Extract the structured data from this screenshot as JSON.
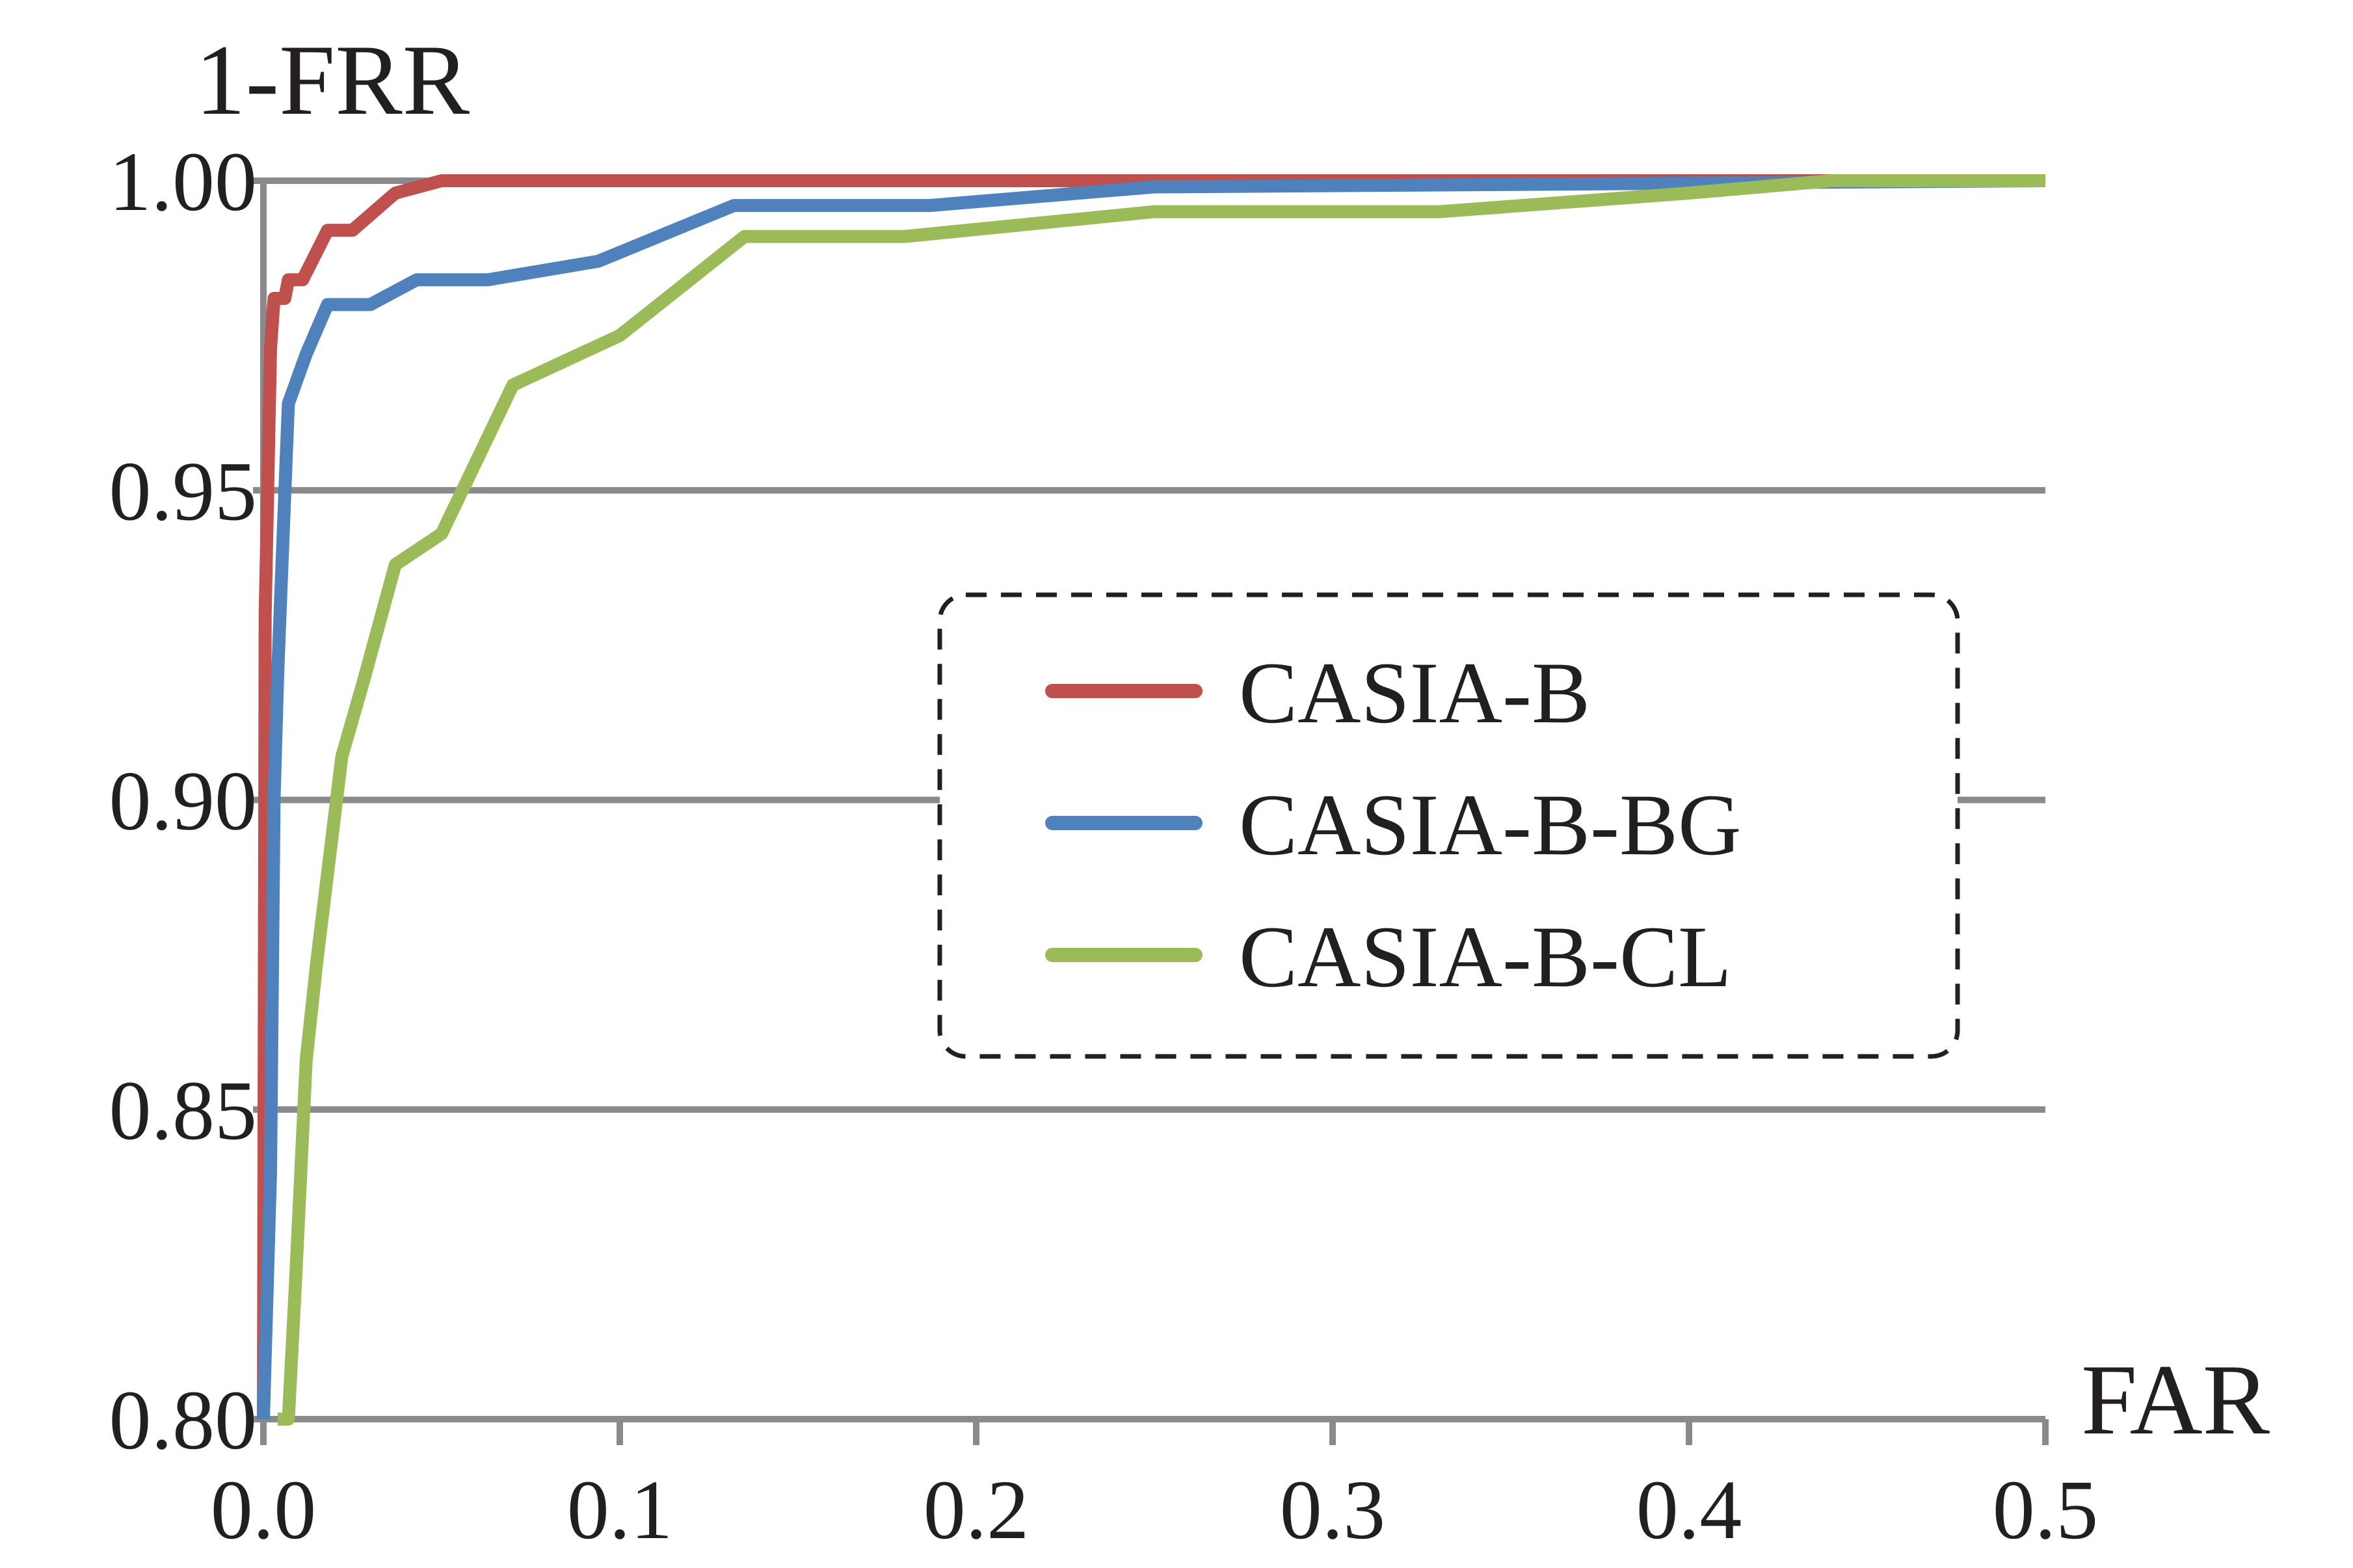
{
  "chart_data": {
    "type": "line",
    "title": "",
    "xlabel": "FAR",
    "ylabel": "1-FRR",
    "xlim": [
      0,
      0.5
    ],
    "ylim": [
      0.8,
      1.0
    ],
    "xticks": [
      0.0,
      0.1,
      0.2,
      0.3,
      0.4,
      0.5
    ],
    "xtick_labels": [
      "0.0",
      "0.1",
      "0.2",
      "0.3",
      "0.4",
      "0.5"
    ],
    "yticks": [
      0.8,
      0.85,
      0.9,
      0.95,
      1.0
    ],
    "ytick_labels": [
      "0.80",
      "0.85",
      "0.90",
      "0.95",
      "1.00"
    ],
    "grid": "horizontal",
    "legend": "center-right",
    "legend_border": "dashed",
    "series": [
      {
        "name": "CASIA-B",
        "color": "#c0504d",
        "points": [
          [
            0.0,
            0.8
          ],
          [
            0.0005,
            0.93
          ],
          [
            0.002,
            0.973
          ],
          [
            0.003,
            0.981
          ],
          [
            0.006,
            0.981
          ],
          [
            0.007,
            0.984
          ],
          [
            0.011,
            0.984
          ],
          [
            0.018,
            0.992
          ],
          [
            0.025,
            0.992
          ],
          [
            0.037,
            0.998
          ],
          [
            0.05,
            1.0
          ],
          [
            0.5,
            1.0
          ]
        ]
      },
      {
        "name": "CASIA-B-BG",
        "color": "#4f81bd",
        "points": [
          [
            0.0,
            0.8
          ],
          [
            0.002,
            0.84
          ],
          [
            0.003,
            0.9
          ],
          [
            0.004,
            0.92
          ],
          [
            0.005,
            0.935
          ],
          [
            0.007,
            0.964
          ],
          [
            0.012,
            0.972
          ],
          [
            0.018,
            0.98
          ],
          [
            0.03,
            0.98
          ],
          [
            0.043,
            0.984
          ],
          [
            0.063,
            0.984
          ],
          [
            0.094,
            0.987
          ],
          [
            0.132,
            0.996
          ],
          [
            0.187,
            0.996
          ],
          [
            0.25,
            0.999
          ],
          [
            0.5,
            1.0
          ]
        ]
      },
      {
        "name": "CASIA-B-CL",
        "color": "#9bbb59",
        "points": [
          [
            0.004,
            0.8
          ],
          [
            0.007,
            0.8
          ],
          [
            0.009,
            0.822
          ],
          [
            0.012,
            0.858
          ],
          [
            0.015,
            0.874
          ],
          [
            0.022,
            0.907
          ],
          [
            0.028,
            0.919
          ],
          [
            0.037,
            0.938
          ],
          [
            0.05,
            0.943
          ],
          [
            0.07,
            0.967
          ],
          [
            0.1,
            0.975
          ],
          [
            0.135,
            0.991
          ],
          [
            0.18,
            0.991
          ],
          [
            0.25,
            0.995
          ],
          [
            0.33,
            0.995
          ],
          [
            0.4,
            0.998
          ],
          [
            0.44,
            1.0
          ],
          [
            0.5,
            1.0
          ]
        ]
      }
    ]
  }
}
